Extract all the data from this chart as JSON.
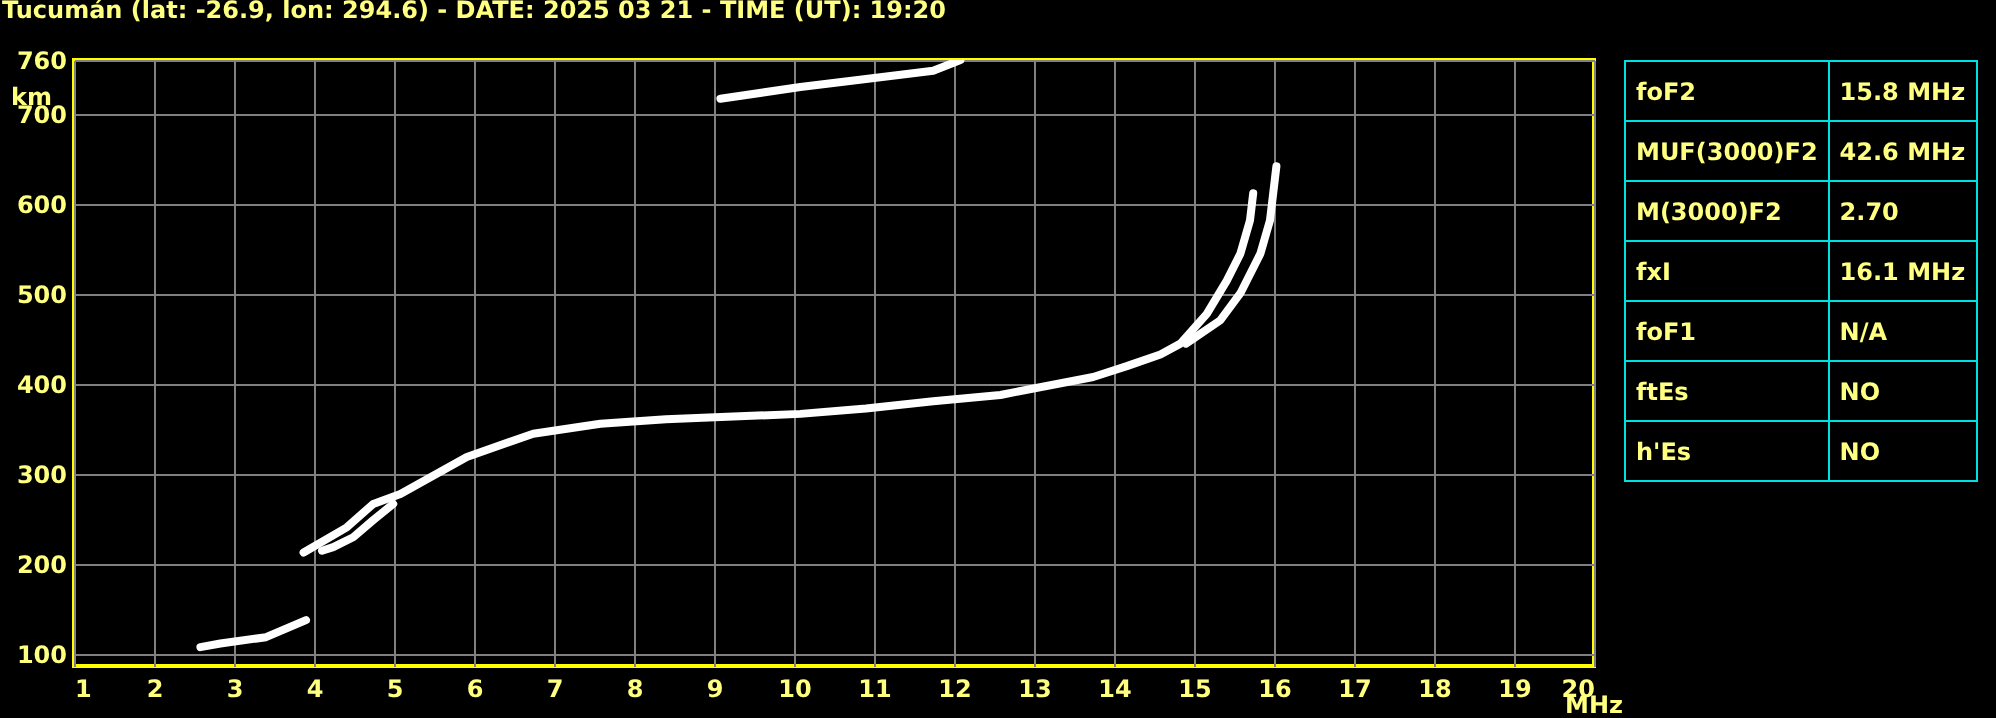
{
  "chart_data": [
    {
      "type": "line",
      "title": "Tucumán (lat: -26.9, lon: 294.6) - DATE: 2025 03 21 - TIME (UT): 19:20",
      "xlabel": "MHz",
      "ylabel": "km",
      "xlim": [
        1,
        20
      ],
      "ylim": [
        87,
        760
      ],
      "xticks": [
        1,
        2,
        3,
        4,
        5,
        6,
        7,
        8,
        9,
        10,
        11,
        12,
        13,
        14,
        15,
        16,
        17,
        18,
        19,
        20
      ],
      "yticks": [
        100,
        200,
        300,
        400,
        500,
        600,
        700,
        760
      ],
      "grid": true,
      "legend": false,
      "series": [
        {
          "color": "#ffffff",
          "x": [
            3.87,
            4.41,
            4.74,
            5.08,
            5.91,
            6.74,
            7.58,
            8.4,
            9.24,
            10.08,
            10.9,
            11.74,
            12.58,
            13.74,
            14.16,
            14.58,
            14.83,
            15.16,
            15.41,
            15.58,
            15.7,
            15.74
          ],
          "values": [
            213,
            241,
            267,
            278,
            319,
            345,
            356,
            361,
            364,
            367,
            373,
            381,
            388,
            408,
            420,
            433,
            445,
            478,
            515,
            545,
            582,
            612
          ]
        },
        {
          "color": "#ffffff",
          "x": [
            4.1,
            4.24,
            4.49,
            4.74,
            4.99
          ],
          "values": [
            215,
            219,
            230,
            249,
            267
          ]
        },
        {
          "color": "#ffffff",
          "x": [
            14.9,
            15.33,
            15.58,
            15.83,
            15.95,
            16.03
          ],
          "values": [
            445,
            471,
            501,
            545,
            582,
            642
          ]
        },
        {
          "color": "#ffffff",
          "x": [
            2.58,
            2.83,
            3.4,
            3.9
          ],
          "values": [
            108,
            112,
            119,
            138
          ]
        },
        {
          "color": "#ffffff",
          "x": [
            9.08,
            10.08,
            10.9,
            11.74,
            12.08
          ],
          "values": [
            717,
            730,
            739,
            748,
            760
          ]
        }
      ]
    },
    {
      "type": "other",
      "annotations": [
        "foF2",
        "15.8 MHz",
        "MUF(3000)F2",
        "42.6 MHz",
        "M(3000)F2",
        "2.70",
        "fxI",
        "16.1 MHz",
        "foF1",
        "N/A",
        "ftEs",
        "NO",
        "h'Es",
        "NO"
      ]
    }
  ]
}
